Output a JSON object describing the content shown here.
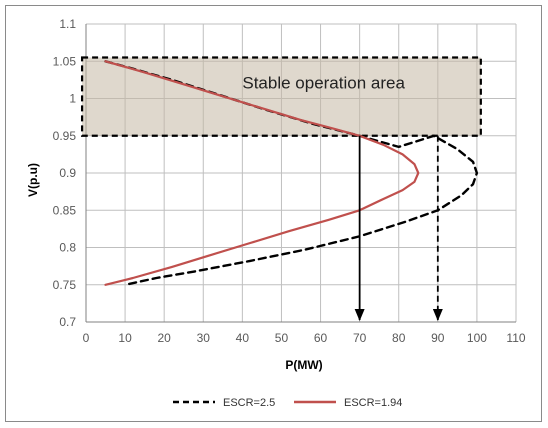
{
  "chart_data": {
    "type": "line",
    "xlabel": "P(MW)",
    "ylabel": "V(p.u)",
    "xlim": [
      0,
      110
    ],
    "ylim": [
      0.7,
      1.1
    ],
    "x_ticks": [
      "0",
      "10",
      "20",
      "30",
      "40",
      "50",
      "60",
      "70",
      "80",
      "90",
      "100",
      "110"
    ],
    "y_ticks": [
      "0.7",
      "0.75",
      "0.8",
      "0.85",
      "0.9",
      "0.95",
      "1",
      "1.05",
      "1.1"
    ],
    "grid": true,
    "legend_position": "bottom",
    "series": [
      {
        "name": "ESCR=2.5",
        "style": "dashed",
        "color": "#000000",
        "points": [
          [
            5,
            1.05
          ],
          [
            12,
            1.04
          ],
          [
            22,
            1.025
          ],
          [
            34,
            1.005
          ],
          [
            46,
            0.985
          ],
          [
            58,
            0.966
          ],
          [
            70,
            0.95
          ],
          [
            80,
            0.935
          ],
          [
            89,
            0.95
          ],
          [
            95,
            0.932
          ],
          [
            99,
            0.915
          ],
          [
            100,
            0.9
          ],
          [
            99,
            0.885
          ],
          [
            96,
            0.87
          ],
          [
            90,
            0.85
          ],
          [
            82,
            0.835
          ],
          [
            70,
            0.815
          ],
          [
            56,
            0.797
          ],
          [
            42,
            0.782
          ],
          [
            28,
            0.768
          ],
          [
            18,
            0.759
          ],
          [
            10,
            0.75
          ]
        ]
      },
      {
        "name": "ESCR=1.94",
        "style": "solid",
        "color": "#c0504d",
        "points": [
          [
            5,
            1.05
          ],
          [
            15,
            1.035
          ],
          [
            25,
            1.019
          ],
          [
            35,
            1.003
          ],
          [
            45,
            0.987
          ],
          [
            55,
            0.971
          ],
          [
            63,
            0.96
          ],
          [
            70,
            0.95
          ],
          [
            76,
            0.938
          ],
          [
            81,
            0.925
          ],
          [
            84,
            0.912
          ],
          [
            85,
            0.9
          ],
          [
            84,
            0.888
          ],
          [
            81,
            0.877
          ],
          [
            76,
            0.865
          ],
          [
            70,
            0.85
          ],
          [
            62,
            0.837
          ],
          [
            52,
            0.822
          ],
          [
            42,
            0.806
          ],
          [
            32,
            0.79
          ],
          [
            22,
            0.774
          ],
          [
            12,
            0.759
          ],
          [
            5,
            0.75
          ]
        ]
      }
    ],
    "annotations": {
      "region_label": "Stable operation area",
      "region": {
        "x": [
          -1,
          101
        ],
        "y": [
          0.95,
          1.055
        ]
      },
      "arrows": [
        {
          "x": 70,
          "from_y": 0.95,
          "to_y": 0.7,
          "style": "solid"
        },
        {
          "x": 90,
          "from_y": 0.95,
          "to_y": 0.7,
          "style": "dashed"
        }
      ]
    }
  }
}
